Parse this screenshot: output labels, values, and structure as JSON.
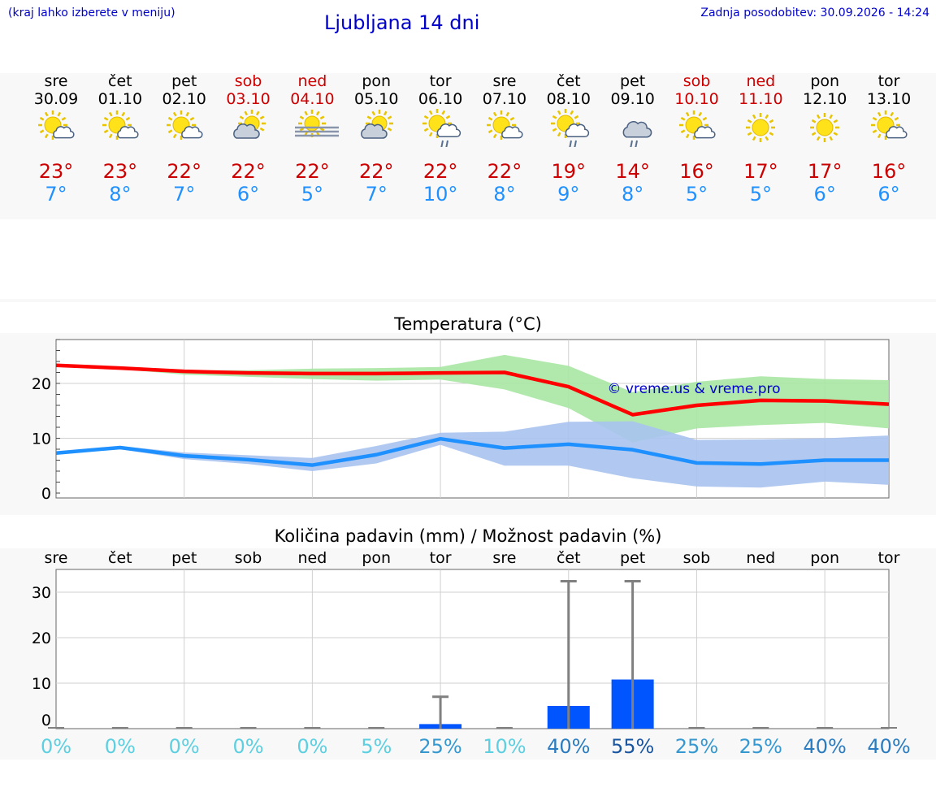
{
  "header": {
    "left_note": "(kraj lahko izberete v meniju)",
    "title": "Ljubljana 14 dni",
    "updated": "Zadnja posodobitev: 30.09.2026 - 14:24"
  },
  "forecast": [
    {
      "day": "sre",
      "date": "30.09",
      "weekend": false,
      "icon": "sun-cloud-icon",
      "tmax": "23°",
      "tmin": "7°"
    },
    {
      "day": "čet",
      "date": "01.10",
      "weekend": false,
      "icon": "sun-cloud-icon",
      "tmax": "23°",
      "tmin": "8°"
    },
    {
      "day": "pet",
      "date": "02.10",
      "weekend": false,
      "icon": "sun-cloud-icon",
      "tmax": "22°",
      "tmin": "7°"
    },
    {
      "day": "sob",
      "date": "03.10",
      "weekend": true,
      "icon": "cloud-sun-icon",
      "tmax": "22°",
      "tmin": "6°"
    },
    {
      "day": "ned",
      "date": "04.10",
      "weekend": true,
      "icon": "sun-fog-icon",
      "tmax": "22°",
      "tmin": "5°"
    },
    {
      "day": "pon",
      "date": "05.10",
      "weekend": false,
      "icon": "cloud-sun-icon",
      "tmax": "22°",
      "tmin": "7°"
    },
    {
      "day": "tor",
      "date": "06.10",
      "weekend": false,
      "icon": "sun-cloud-rain-icon",
      "tmax": "22°",
      "tmin": "10°"
    },
    {
      "day": "sre",
      "date": "07.10",
      "weekend": false,
      "icon": "sun-cloud-icon",
      "tmax": "22°",
      "tmin": "8°"
    },
    {
      "day": "čet",
      "date": "08.10",
      "weekend": false,
      "icon": "sun-cloud-rain-icon",
      "tmax": "19°",
      "tmin": "9°"
    },
    {
      "day": "pet",
      "date": "09.10",
      "weekend": false,
      "icon": "cloud-rain-icon",
      "tmax": "14°",
      "tmin": "8°"
    },
    {
      "day": "sob",
      "date": "10.10",
      "weekend": true,
      "icon": "sun-cloud-icon",
      "tmax": "16°",
      "tmin": "5°"
    },
    {
      "day": "ned",
      "date": "11.10",
      "weekend": true,
      "icon": "sun-icon",
      "tmax": "17°",
      "tmin": "5°"
    },
    {
      "day": "pon",
      "date": "12.10",
      "weekend": false,
      "icon": "sun-icon",
      "tmax": "17°",
      "tmin": "6°"
    },
    {
      "day": "tor",
      "date": "13.10",
      "weekend": false,
      "icon": "sun-cloud-icon",
      "tmax": "16°",
      "tmin": "6°"
    }
  ],
  "colors": {
    "max_line": "#ff0000",
    "max_band": "#a8e6a3",
    "min_line": "#1e90ff",
    "min_band": "#a9c3f0",
    "bar": "#0055ff",
    "error": "#808080"
  },
  "chart_data": [
    {
      "type": "line",
      "title": "Temperatura (°C)",
      "watermark": "© vreme.us & vreme.pro",
      "x": [
        "30.09",
        "01.10",
        "02.10",
        "03.10",
        "04.10",
        "05.10",
        "06.10",
        "07.10",
        "08.10",
        "09.10",
        "10.10",
        "11.10",
        "12.10",
        "13.10"
      ],
      "ylim": [
        0,
        28
      ],
      "yticks": [
        0,
        10,
        20
      ],
      "grid": true,
      "series": [
        {
          "name": "",
          "values": [
            23.3,
            22.8,
            22.2,
            21.9,
            21.8,
            21.8,
            21.9,
            22.0,
            19.4,
            14.3,
            16.0,
            16.9,
            16.8,
            16.2
          ],
          "upper": [
            23.3,
            22.8,
            22.4,
            22.4,
            22.7,
            22.8,
            23.0,
            25.2,
            23.2,
            18.4,
            20.3,
            21.3,
            20.8,
            20.6
          ],
          "lower": [
            23.3,
            22.6,
            21.6,
            21.2,
            20.8,
            20.5,
            20.7,
            18.9,
            15.5,
            9.2,
            11.8,
            12.4,
            12.8,
            11.8
          ]
        },
        {
          "name": "",
          "values": [
            7.3,
            8.3,
            6.8,
            6.1,
            5.1,
            7.0,
            9.9,
            8.2,
            8.9,
            7.9,
            5.5,
            5.3,
            6.0,
            6.0
          ],
          "upper": [
            7.3,
            8.6,
            7.4,
            6.9,
            6.4,
            8.6,
            11.0,
            11.2,
            13.0,
            13.1,
            9.7,
            9.8,
            10.0,
            10.5
          ],
          "lower": [
            7.3,
            8.0,
            6.2,
            5.3,
            4.0,
            5.4,
            8.8,
            5.0,
            5.0,
            2.7,
            1.2,
            1.0,
            2.1,
            1.5
          ]
        }
      ]
    },
    {
      "type": "bar",
      "title": "Količina padavin (mm) / Možnost padavin (%)",
      "categories": [
        "sre",
        "čet",
        "pet",
        "sob",
        "ned",
        "pon",
        "tor",
        "sre",
        "čet",
        "pet",
        "sob",
        "ned",
        "pon",
        "tor"
      ],
      "values": [
        0,
        0,
        0,
        0,
        0,
        0,
        1.0,
        0,
        5.0,
        10.8,
        0,
        0,
        0,
        0
      ],
      "error_max": [
        0,
        0,
        0,
        0,
        0,
        0,
        7.0,
        0,
        32.4,
        32.4,
        0,
        0,
        0,
        0
      ],
      "probability": [
        "0%",
        "0%",
        "0%",
        "0%",
        "0%",
        "5%",
        "25%",
        "10%",
        "40%",
        "55%",
        "25%",
        "25%",
        "40%",
        "40%"
      ],
      "ylim": [
        0,
        35
      ],
      "yticks": [
        0,
        10,
        20,
        30
      ],
      "grid": true
    }
  ]
}
